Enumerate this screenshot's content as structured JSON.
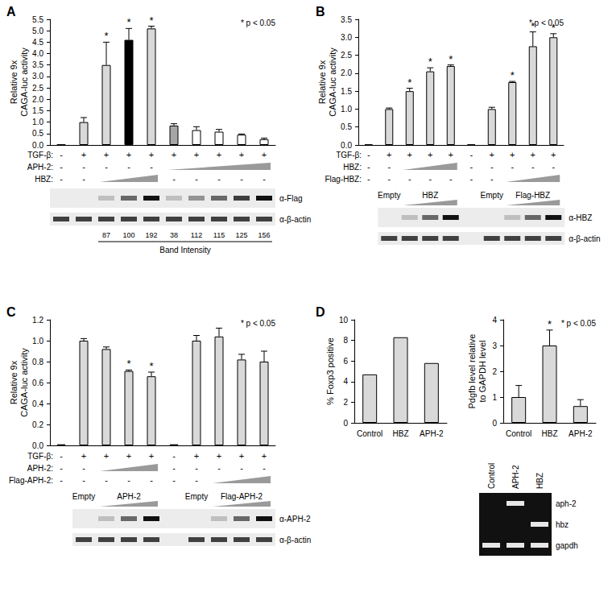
{
  "chart_data": [
    {
      "panel": "A",
      "type": "bar",
      "annotation": "* p < 0.05",
      "y_label": "Relative 9x CAGA-luc activity",
      "categories": [
        null,
        null,
        null,
        null,
        null,
        null,
        null,
        null,
        null,
        null
      ],
      "values": [
        0.02,
        1.0,
        3.5,
        4.6,
        5.1,
        0.85,
        0.65,
        0.58,
        0.45,
        0.25
      ],
      "errors": [
        0,
        0.2,
        1.0,
        0.5,
        0.1,
        0.08,
        0.15,
        0.1,
        0.03,
        0.05
      ],
      "significance": [
        null,
        null,
        "*",
        "*",
        "*",
        null,
        null,
        null,
        null,
        null
      ],
      "colors": [
        "#d9d9d9",
        "#d9d9d9",
        "#d9d9d9",
        "#000000",
        "#d9d9d9",
        "#a6a6a6",
        "#ffffff",
        "#ffffff",
        "#ffffff",
        "#ffffff"
      ],
      "ylim": [
        0,
        5.5
      ],
      "yticks": [
        {
          "value": 0,
          "label": "0.0"
        },
        0.5,
        {
          "value": 1,
          "label": "1.0"
        },
        1.5,
        {
          "value": 2,
          "label": "2.0"
        },
        2.5,
        {
          "value": 3,
          "label": "3.0"
        },
        3.5,
        {
          "value": 4,
          "label": "4.0"
        },
        4.5,
        {
          "value": 5,
          "label": "5.0"
        },
        5.5
      ],
      "grid": false,
      "tick_labels": "y",
      "conditions": [
        {
          "label": "TGF-β:",
          "marks": [
            "-",
            "+",
            "+",
            "+",
            "+",
            "+",
            "+",
            "+",
            "+",
            "+"
          ]
        },
        {
          "label": "APH-2:",
          "marks": [
            "-",
            "-",
            "-",
            "-",
            "-",
            null,
            null,
            null,
            null,
            null
          ]
        },
        {
          "label": "HBZ:",
          "marks": [
            "-",
            "-",
            null,
            null,
            null,
            "-",
            "-",
            "-",
            "-",
            "-"
          ]
        }
      ],
      "blot": {
        "antibodies": [
          "α-Flag",
          "α-β-actin"
        ],
        "band_intensity": [
          null,
          null,
          87,
          100,
          192,
          38,
          112,
          115,
          125,
          156
        ],
        "band_intensity_label": "Band Intensity"
      }
    },
    {
      "panel": "B",
      "type": "bar",
      "annotation": "* p < 0.05",
      "y_label": "Relative 9x CAGA-luc activity",
      "categories": [
        null,
        null,
        null,
        null,
        null,
        null,
        null,
        null,
        null,
        null
      ],
      "values": [
        0.01,
        1.0,
        1.5,
        2.05,
        2.2,
        0.01,
        1.0,
        1.75,
        2.75,
        3.0
      ],
      "errors": [
        0,
        0.03,
        0.08,
        0.1,
        0.03,
        0,
        0.05,
        0.02,
        0.4,
        0.1
      ],
      "significance": [
        null,
        null,
        "*",
        "*",
        "*",
        null,
        null,
        "*",
        "*",
        "*"
      ],
      "color": "#d9d9d9",
      "ylim": [
        0,
        3.5
      ],
      "yticks": [
        {
          "value": 0,
          "label": "0.0"
        },
        0.5,
        {
          "value": 1,
          "label": "1.0"
        },
        1.5,
        {
          "value": 2,
          "label": "2.0"
        },
        2.5,
        {
          "value": 3,
          "label": "3.0"
        },
        3.5
      ],
      "grid": false,
      "tick_labels": "y",
      "conditions": [
        {
          "label": "TGF-β:",
          "marks": [
            "-",
            "+",
            "+",
            "+",
            "+",
            "-",
            "+",
            "+",
            "+",
            "+"
          ]
        },
        {
          "label": "HBZ:",
          "marks": [
            "-",
            "-",
            null,
            null,
            null,
            "-",
            "-",
            "-",
            "-",
            "-"
          ]
        },
        {
          "label": "Flag-HBZ:",
          "marks": [
            "-",
            "-",
            "-",
            "-",
            "-",
            "-",
            "-",
            null,
            null,
            null
          ]
        }
      ],
      "blot": {
        "antibodies": [
          "α-HBZ",
          "α-β-actin"
        ],
        "lanes": [
          null,
          "Empty",
          "HBZ",
          "HBZ",
          "HBZ",
          null,
          "Empty",
          "Flag-HBZ",
          "Flag-HBZ",
          "Flag-HBZ"
        ]
      }
    },
    {
      "panel": "C",
      "type": "bar",
      "annotation": "* p < 0.05",
      "y_label": "Relative 9x CAGA-luc activity",
      "categories": [
        null,
        null,
        null,
        null,
        null,
        null,
        null,
        null,
        null,
        null
      ],
      "values": [
        0.01,
        1.0,
        0.92,
        0.71,
        0.66,
        0.01,
        1.0,
        1.04,
        0.82,
        0.8
      ],
      "errors": [
        0,
        0.02,
        0.02,
        0.01,
        0.04,
        0,
        0.05,
        0.08,
        0.05,
        0.1
      ],
      "significance": [
        null,
        null,
        null,
        "*",
        "*",
        null,
        null,
        null,
        null,
        null
      ],
      "color": "#d9d9d9",
      "ylim": [
        0,
        1.2
      ],
      "yticks": [
        {
          "value": 0,
          "label": "0.0"
        },
        0.2,
        0.4,
        0.6,
        0.8,
        {
          "value": 1,
          "label": "1.0"
        },
        1.2
      ],
      "grid": false,
      "tick_labels": "y",
      "conditions": [
        {
          "label": "TGF-β:",
          "marks": [
            "-",
            "+",
            "+",
            "+",
            "+",
            "-",
            "+",
            "+",
            "+",
            "+"
          ]
        },
        {
          "label": "APH-2:",
          "marks": [
            "-",
            "-",
            null,
            null,
            null,
            "-",
            "-",
            "-",
            "-",
            "-"
          ]
        },
        {
          "label": "Flag-APH-2:",
          "marks": [
            "-",
            "-",
            "-",
            "-",
            "-",
            "-",
            "-",
            null,
            null,
            null
          ]
        }
      ],
      "blot": {
        "antibodies": [
          "α-APH-2",
          "α-β-actin"
        ],
        "lanes": [
          null,
          "Empty",
          "APH-2",
          "APH-2",
          "APH-2",
          null,
          "Empty",
          "Flag-APH-2",
          "Flag-APH-2",
          "Flag-APH-2"
        ]
      }
    },
    {
      "panel": "D",
      "type": "bar",
      "y_label": "% Foxp3 positive",
      "categories": [
        "Control",
        "HBZ",
        "APH-2"
      ],
      "values": [
        4.7,
        8.3,
        5.8
      ],
      "color": "#d9d9d9",
      "ylim": [
        0,
        10
      ],
      "yticks": [
        0,
        2,
        4,
        6,
        8,
        10
      ],
      "grid": false
    },
    {
      "type": "bar",
      "annotation": "* p < 0.05",
      "y_label": "Pdgfb level relative to GAPDH level",
      "categories": [
        "Control",
        "HBZ",
        "APH-2"
      ],
      "values": [
        1.0,
        3.0,
        0.65
      ],
      "errors": [
        0.45,
        0.6,
        0.25
      ],
      "significance": [
        null,
        "*",
        null
      ],
      "color": "#d9d9d9",
      "ylim": [
        0,
        4
      ],
      "yticks": [
        0,
        1,
        2,
        3,
        4
      ],
      "grid": false,
      "gel": {
        "lanes": [
          "Control",
          "APH-2",
          "HBZ"
        ],
        "rows": [
          "aph-2",
          "hbz",
          "gapdh"
        ],
        "bands": [
          [
            false,
            true,
            false
          ],
          [
            false,
            false,
            true
          ],
          [
            true,
            true,
            true
          ]
        ]
      }
    }
  ]
}
